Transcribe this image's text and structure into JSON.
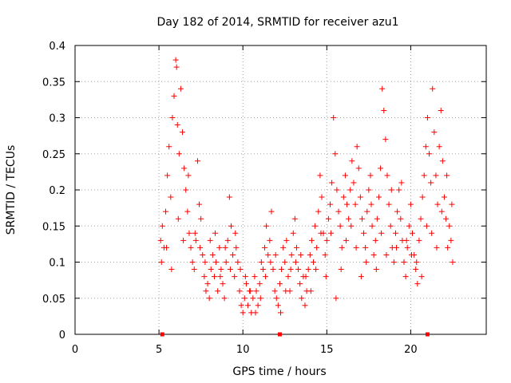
{
  "chart_data": {
    "type": "scatter",
    "title": "Day 182 of 2014, SRMTID for receiver azu1",
    "xlabel": "GPS time / hours",
    "ylabel": "SRMTID / TECUs",
    "xlim": [
      0,
      24.5
    ],
    "ylim": [
      0,
      0.4
    ],
    "xticks": [
      0,
      5,
      10,
      15,
      20
    ],
    "xtick_labels": [
      "0",
      "5",
      "10",
      "15",
      "20"
    ],
    "yticks": [
      0,
      0.05,
      0.1,
      0.15,
      0.2,
      0.25,
      0.3,
      0.35,
      0.4
    ],
    "ytick_labels": [
      "0",
      "0.05",
      "0.1",
      "0.15",
      "0.2",
      "0.25",
      "0.3",
      "0.35",
      "0.4"
    ],
    "grid": true,
    "marker": "plus",
    "color": "#ff0000",
    "series": [
      {
        "name": "SRMTID",
        "points": [
          [
            5.1,
            0.13
          ],
          [
            5.2,
            0.15
          ],
          [
            5.3,
            0.12
          ],
          [
            5.4,
            0.17
          ],
          [
            5.5,
            0.22
          ],
          [
            5.6,
            0.26
          ],
          [
            5.7,
            0.19
          ],
          [
            5.8,
            0.3
          ],
          [
            5.9,
            0.33
          ],
          [
            6.0,
            0.38
          ],
          [
            6.05,
            0.37
          ],
          [
            6.1,
            0.29
          ],
          [
            6.2,
            0.25
          ],
          [
            6.3,
            0.34
          ],
          [
            6.4,
            0.28
          ],
          [
            6.5,
            0.23
          ],
          [
            6.6,
            0.2
          ],
          [
            6.7,
            0.17
          ],
          [
            6.8,
            0.14
          ],
          [
            6.9,
            0.12
          ],
          [
            7.0,
            0.1
          ],
          [
            7.1,
            0.09
          ],
          [
            7.2,
            0.13
          ],
          [
            7.3,
            0.24
          ],
          [
            7.4,
            0.18
          ],
          [
            7.5,
            0.16
          ],
          [
            7.6,
            0.11
          ],
          [
            7.7,
            0.08
          ],
          [
            7.8,
            0.06
          ],
          [
            7.9,
            0.07
          ],
          [
            8.0,
            0.05
          ],
          [
            8.1,
            0.09
          ],
          [
            8.2,
            0.11
          ],
          [
            8.3,
            0.08
          ],
          [
            8.4,
            0.1
          ],
          [
            8.5,
            0.06
          ],
          [
            8.6,
            0.12
          ],
          [
            8.7,
            0.09
          ],
          [
            8.8,
            0.07
          ],
          [
            8.9,
            0.05
          ],
          [
            9.0,
            0.1
          ],
          [
            9.1,
            0.13
          ],
          [
            9.2,
            0.19
          ],
          [
            9.3,
            0.15
          ],
          [
            9.4,
            0.11
          ],
          [
            9.5,
            0.08
          ],
          [
            9.6,
            0.12
          ],
          [
            9.7,
            0.1
          ],
          [
            9.8,
            0.06
          ],
          [
            9.9,
            0.04
          ],
          [
            10.0,
            0.03
          ],
          [
            10.1,
            0.05
          ],
          [
            10.2,
            0.07
          ],
          [
            10.3,
            0.04
          ],
          [
            10.4,
            0.06
          ],
          [
            10.5,
            0.03
          ],
          [
            10.6,
            0.05
          ],
          [
            10.7,
            0.08
          ],
          [
            10.8,
            0.06
          ],
          [
            10.9,
            0.04
          ],
          [
            11.0,
            0.07
          ],
          [
            11.1,
            0.1
          ],
          [
            11.2,
            0.09
          ],
          [
            11.3,
            0.12
          ],
          [
            11.4,
            0.15
          ],
          [
            11.5,
            0.11
          ],
          [
            11.6,
            0.13
          ],
          [
            11.7,
            0.17
          ],
          [
            11.8,
            0.09
          ],
          [
            11.9,
            0.06
          ],
          [
            12.0,
            0.05
          ],
          [
            12.1,
            0.04
          ],
          [
            12.2,
            0.07
          ],
          [
            12.3,
            0.09
          ],
          [
            12.4,
            0.12
          ],
          [
            12.5,
            0.1
          ],
          [
            12.6,
            0.13
          ],
          [
            12.7,
            0.08
          ],
          [
            12.8,
            0.06
          ],
          [
            12.9,
            0.11
          ],
          [
            13.0,
            0.14
          ],
          [
            13.1,
            0.16
          ],
          [
            13.2,
            0.12
          ],
          [
            13.3,
            0.09
          ],
          [
            13.4,
            0.07
          ],
          [
            13.5,
            0.05
          ],
          [
            13.6,
            0.08
          ],
          [
            13.7,
            0.04
          ],
          [
            13.8,
            0.06
          ],
          [
            13.9,
            0.09
          ],
          [
            14.0,
            0.11
          ],
          [
            14.1,
            0.13
          ],
          [
            14.2,
            0.1
          ],
          [
            14.3,
            0.15
          ],
          [
            14.4,
            0.12
          ],
          [
            14.5,
            0.17
          ],
          [
            14.6,
            0.22
          ],
          [
            14.7,
            0.19
          ],
          [
            14.8,
            0.14
          ],
          [
            14.9,
            0.11
          ],
          [
            15.0,
            0.13
          ],
          [
            15.1,
            0.16
          ],
          [
            15.2,
            0.18
          ],
          [
            15.3,
            0.21
          ],
          [
            15.4,
            0.3
          ],
          [
            15.5,
            0.25
          ],
          [
            15.6,
            0.2
          ],
          [
            15.7,
            0.17
          ],
          [
            15.8,
            0.15
          ],
          [
            15.9,
            0.12
          ],
          [
            16.0,
            0.19
          ],
          [
            16.1,
            0.22
          ],
          [
            16.2,
            0.18
          ],
          [
            16.3,
            0.16
          ],
          [
            16.4,
            0.2
          ],
          [
            16.5,
            0.24
          ],
          [
            16.6,
            0.21
          ],
          [
            16.7,
            0.18
          ],
          [
            16.8,
            0.26
          ],
          [
            16.9,
            0.23
          ],
          [
            17.0,
            0.19
          ],
          [
            17.1,
            0.16
          ],
          [
            17.2,
            0.14
          ],
          [
            17.3,
            0.12
          ],
          [
            17.4,
            0.17
          ],
          [
            17.5,
            0.2
          ],
          [
            17.6,
            0.22
          ],
          [
            17.7,
            0.15
          ],
          [
            17.8,
            0.11
          ],
          [
            17.9,
            0.13
          ],
          [
            18.0,
            0.16
          ],
          [
            18.1,
            0.19
          ],
          [
            18.2,
            0.23
          ],
          [
            18.3,
            0.34
          ],
          [
            18.4,
            0.31
          ],
          [
            18.5,
            0.27
          ],
          [
            18.6,
            0.22
          ],
          [
            18.7,
            0.18
          ],
          [
            18.8,
            0.15
          ],
          [
            18.9,
            0.12
          ],
          [
            19.0,
            0.1
          ],
          [
            19.1,
            0.14
          ],
          [
            19.2,
            0.17
          ],
          [
            19.3,
            0.2
          ],
          [
            19.4,
            0.16
          ],
          [
            19.5,
            0.13
          ],
          [
            19.6,
            0.1
          ],
          [
            19.7,
            0.08
          ],
          [
            19.8,
            0.12
          ],
          [
            19.9,
            0.15
          ],
          [
            20.0,
            0.18
          ],
          [
            20.1,
            0.14
          ],
          [
            20.2,
            0.11
          ],
          [
            20.3,
            0.09
          ],
          [
            20.4,
            0.07
          ],
          [
            20.5,
            0.13
          ],
          [
            20.6,
            0.16
          ],
          [
            20.7,
            0.19
          ],
          [
            20.8,
            0.22
          ],
          [
            20.9,
            0.26
          ],
          [
            21.0,
            0.3
          ],
          [
            21.1,
            0.25
          ],
          [
            21.2,
            0.21
          ],
          [
            21.3,
            0.34
          ],
          [
            21.4,
            0.28
          ],
          [
            21.5,
            0.22
          ],
          [
            21.6,
            0.18
          ],
          [
            21.7,
            0.26
          ],
          [
            21.8,
            0.31
          ],
          [
            21.9,
            0.24
          ],
          [
            22.0,
            0.19
          ],
          [
            22.1,
            0.16
          ],
          [
            22.2,
            0.12
          ],
          [
            22.3,
            0.15
          ],
          [
            22.4,
            0.13
          ],
          [
            22.5,
            0.1
          ],
          [
            5.15,
            0.1
          ],
          [
            5.45,
            0.12
          ],
          [
            5.75,
            0.09
          ],
          [
            6.15,
            0.16
          ],
          [
            6.45,
            0.13
          ],
          [
            6.75,
            0.22
          ],
          [
            7.15,
            0.14
          ],
          [
            7.45,
            0.12
          ],
          [
            7.75,
            0.1
          ],
          [
            8.05,
            0.13
          ],
          [
            8.35,
            0.14
          ],
          [
            8.65,
            0.08
          ],
          [
            8.95,
            0.12
          ],
          [
            9.25,
            0.09
          ],
          [
            9.55,
            0.14
          ],
          [
            9.85,
            0.09
          ],
          [
            10.15,
            0.08
          ],
          [
            10.45,
            0.06
          ],
          [
            10.75,
            0.03
          ],
          [
            11.05,
            0.05
          ],
          [
            11.35,
            0.08
          ],
          [
            11.65,
            0.1
          ],
          [
            11.95,
            0.11
          ],
          [
            12.25,
            0.03
          ],
          [
            12.55,
            0.06
          ],
          [
            12.85,
            0.09
          ],
          [
            13.15,
            0.1
          ],
          [
            13.45,
            0.11
          ],
          [
            13.75,
            0.08
          ],
          [
            14.05,
            0.06
          ],
          [
            14.35,
            0.09
          ],
          [
            14.65,
            0.14
          ],
          [
            14.95,
            0.08
          ],
          [
            15.25,
            0.14
          ],
          [
            15.55,
            0.05
          ],
          [
            15.85,
            0.09
          ],
          [
            16.15,
            0.13
          ],
          [
            16.45,
            0.15
          ],
          [
            16.75,
            0.12
          ],
          [
            17.05,
            0.08
          ],
          [
            17.35,
            0.1
          ],
          [
            17.65,
            0.18
          ],
          [
            17.95,
            0.09
          ],
          [
            18.25,
            0.14
          ],
          [
            18.55,
            0.11
          ],
          [
            18.85,
            0.2
          ],
          [
            19.15,
            0.12
          ],
          [
            19.45,
            0.21
          ],
          [
            19.75,
            0.13
          ],
          [
            20.05,
            0.11
          ],
          [
            20.35,
            0.1
          ],
          [
            20.65,
            0.08
          ],
          [
            20.95,
            0.15
          ],
          [
            21.25,
            0.14
          ],
          [
            21.55,
            0.12
          ],
          [
            21.85,
            0.17
          ],
          [
            22.15,
            0.22
          ],
          [
            22.45,
            0.18
          ]
        ]
      }
    ],
    "markers_on_axis": [
      {
        "x": 5.2,
        "y": 0
      },
      {
        "x": 12.2,
        "y": 0
      },
      {
        "x": 21.0,
        "y": 0
      }
    ]
  }
}
